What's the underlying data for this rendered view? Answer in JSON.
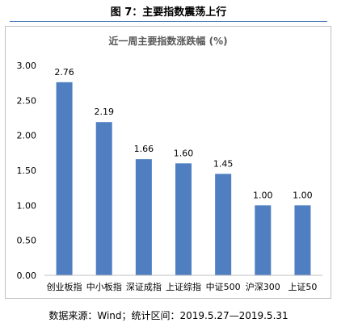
{
  "figure_caption": "图 7：主要指数震荡上行",
  "source_note": "数据来源：Wind；统计区间：2019.5.27—2019.5.31",
  "colors": {
    "bar": "#4f7fc1",
    "rule": "#3a6fb5",
    "grid": "#d9d9d9"
  },
  "chart_data": {
    "type": "bar",
    "title": "近一周主要指数涨跌幅 (%)",
    "categories": [
      "创业板指",
      "中小板指",
      "深证成指",
      "上证综指",
      "中证500",
      "沪深300",
      "上证50"
    ],
    "values": [
      2.76,
      2.19,
      1.66,
      1.6,
      1.45,
      1.0,
      1.0
    ],
    "data_labels": [
      "2.76",
      "2.19",
      "1.66",
      "1.60",
      "1.45",
      "1.00",
      "1.00"
    ],
    "yticks": [
      "0.00",
      "0.50",
      "1.00",
      "1.50",
      "2.00",
      "2.50",
      "3.00"
    ],
    "ylim": [
      0,
      3
    ],
    "xlabel": "",
    "ylabel": "",
    "grid": false
  }
}
